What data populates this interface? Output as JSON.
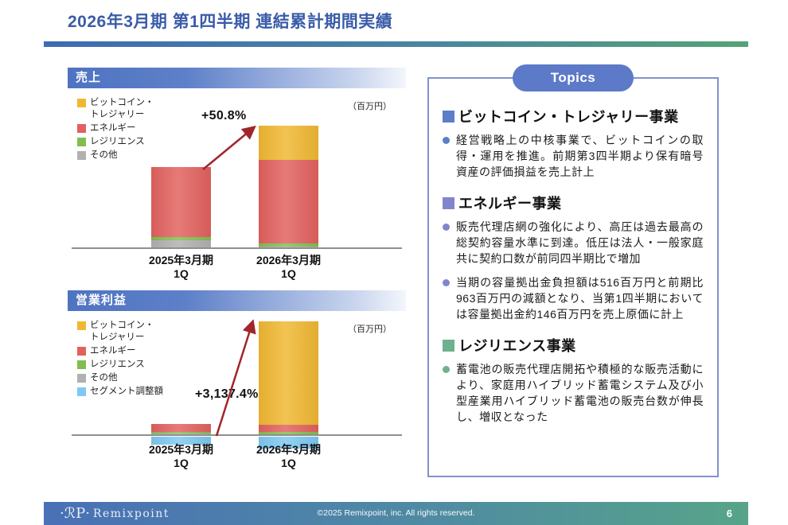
{
  "slide": {
    "title": "2026年3月期 第1四半期 連結累計期間実績",
    "page_number": "6",
    "footer_logo_mark": "·ℛP·",
    "footer_logo_name": "Remixpoint",
    "footer_copyright": "©2025 Remixpoint, inc. All rights reserved."
  },
  "sales_chart": {
    "header": "売上",
    "unit_label": "（百万円）",
    "growth_label": "+50.8%",
    "x_labels": [
      {
        "line1": "2025年3月期",
        "line2": "1Q"
      },
      {
        "line1": "2026年3月期",
        "line2": "1Q"
      }
    ]
  },
  "profit_chart": {
    "header": "営業利益",
    "unit_label": "（百万円）",
    "growth_label": "+3,137.4%",
    "x_labels": [
      {
        "line1": "2025年3月期",
        "line2": "1Q"
      },
      {
        "line1": "2026年3月期",
        "line2": "1Q"
      }
    ]
  },
  "topics": {
    "pill_label": "Topics",
    "sections": [
      {
        "marker_color": "#5B7EC9",
        "heading": "ビットコイン・トレジャリー事業",
        "bullets": [
          "経営戦略上の中核事業で、ビットコインの取得・運用を推進。前期第3四半期より保有暗号資産の評価損益を売上計上"
        ]
      },
      {
        "marker_color": "#8086CC",
        "heading": "エネルギー事業",
        "bullets": [
          "販売代理店網の強化により、高圧は過去最高の総契約容量水準に到達。低圧は法人・一般家庭共に契約口数が前同四半期比で増加",
          "当期の容量拠出金負担額は516百万円と前期比963百万円の減額となり、当第1四半期においては容量拠出金約146百万円を売上原価に計上"
        ]
      },
      {
        "marker_color": "#6FB08F",
        "heading": "レジリエンス事業",
        "bullets": [
          "蓄電池の販売代理店開拓や積極的な販売活動により、家庭用ハイブリッド蓄電システム及び小型産業用ハイブリッド蓄電池の販売台数が伸長し、増収となった"
        ]
      }
    ]
  },
  "colors": {
    "title_blue": "#3A5CA8",
    "chart_header_blue": "#4E73C1",
    "topics_pill_blue": "#5C7AC8",
    "topics_border": "#8193CE",
    "arrow_red": "#A0262C",
    "divider_gradient": [
      "#3E6BB4",
      "#54A376"
    ],
    "footer_gradient": [
      "#4A70B6",
      "#57A489"
    ]
  },
  "chart_data": [
    {
      "type": "bar",
      "stacked": true,
      "title": "売上",
      "unit": "百万円",
      "categories": [
        "2025年3月期 1Q",
        "2026年3月期 1Q"
      ],
      "series": [
        {
          "name": "ビットコイン・トレジャリー",
          "color": "#F0B832",
          "values": [
            0,
            960
          ]
        },
        {
          "name": "エネルギー",
          "color": "#E2615E",
          "values": [
            1990,
            2380
          ]
        },
        {
          "name": "レジリエンス",
          "color": "#82BE4F",
          "values": [
            90,
            90
          ]
        },
        {
          "name": "その他",
          "color": "#B1B1B1",
          "values": [
            225,
            46
          ]
        }
      ],
      "annotations": [
        "+50.8%"
      ],
      "legend_position": "top-left",
      "value_axis": "hidden",
      "note": "no numeric axis shown; values estimated from bar proportions consistent with +50.8% total growth"
    },
    {
      "type": "bar",
      "stacked": true,
      "title": "営業利益",
      "unit": "百万円",
      "categories": [
        "2025年3月期 1Q",
        "2026年3月期 1Q"
      ],
      "series": [
        {
          "name": "ビットコイン・トレジャリー",
          "color": "#F0B832",
          "values": [
            0,
            755
          ]
        },
        {
          "name": "エネルギー",
          "color": "#E2615E",
          "values": [
            60,
            53
          ]
        },
        {
          "name": "レジリエンス",
          "color": "#82BE4F",
          "values": [
            8,
            16
          ]
        },
        {
          "name": "その他",
          "color": "#B1B1B1",
          "values": [
            14,
            5
          ]
        },
        {
          "name": "セグメント調整額",
          "color": "#7EC9F2",
          "values": [
            -59,
            -85
          ]
        }
      ],
      "annotations": [
        "+3,137.4%"
      ],
      "legend_position": "top-left",
      "value_axis": "hidden",
      "note": "no numeric axis shown; values estimated from bar proportions consistent with +3,137.4% net growth"
    }
  ]
}
